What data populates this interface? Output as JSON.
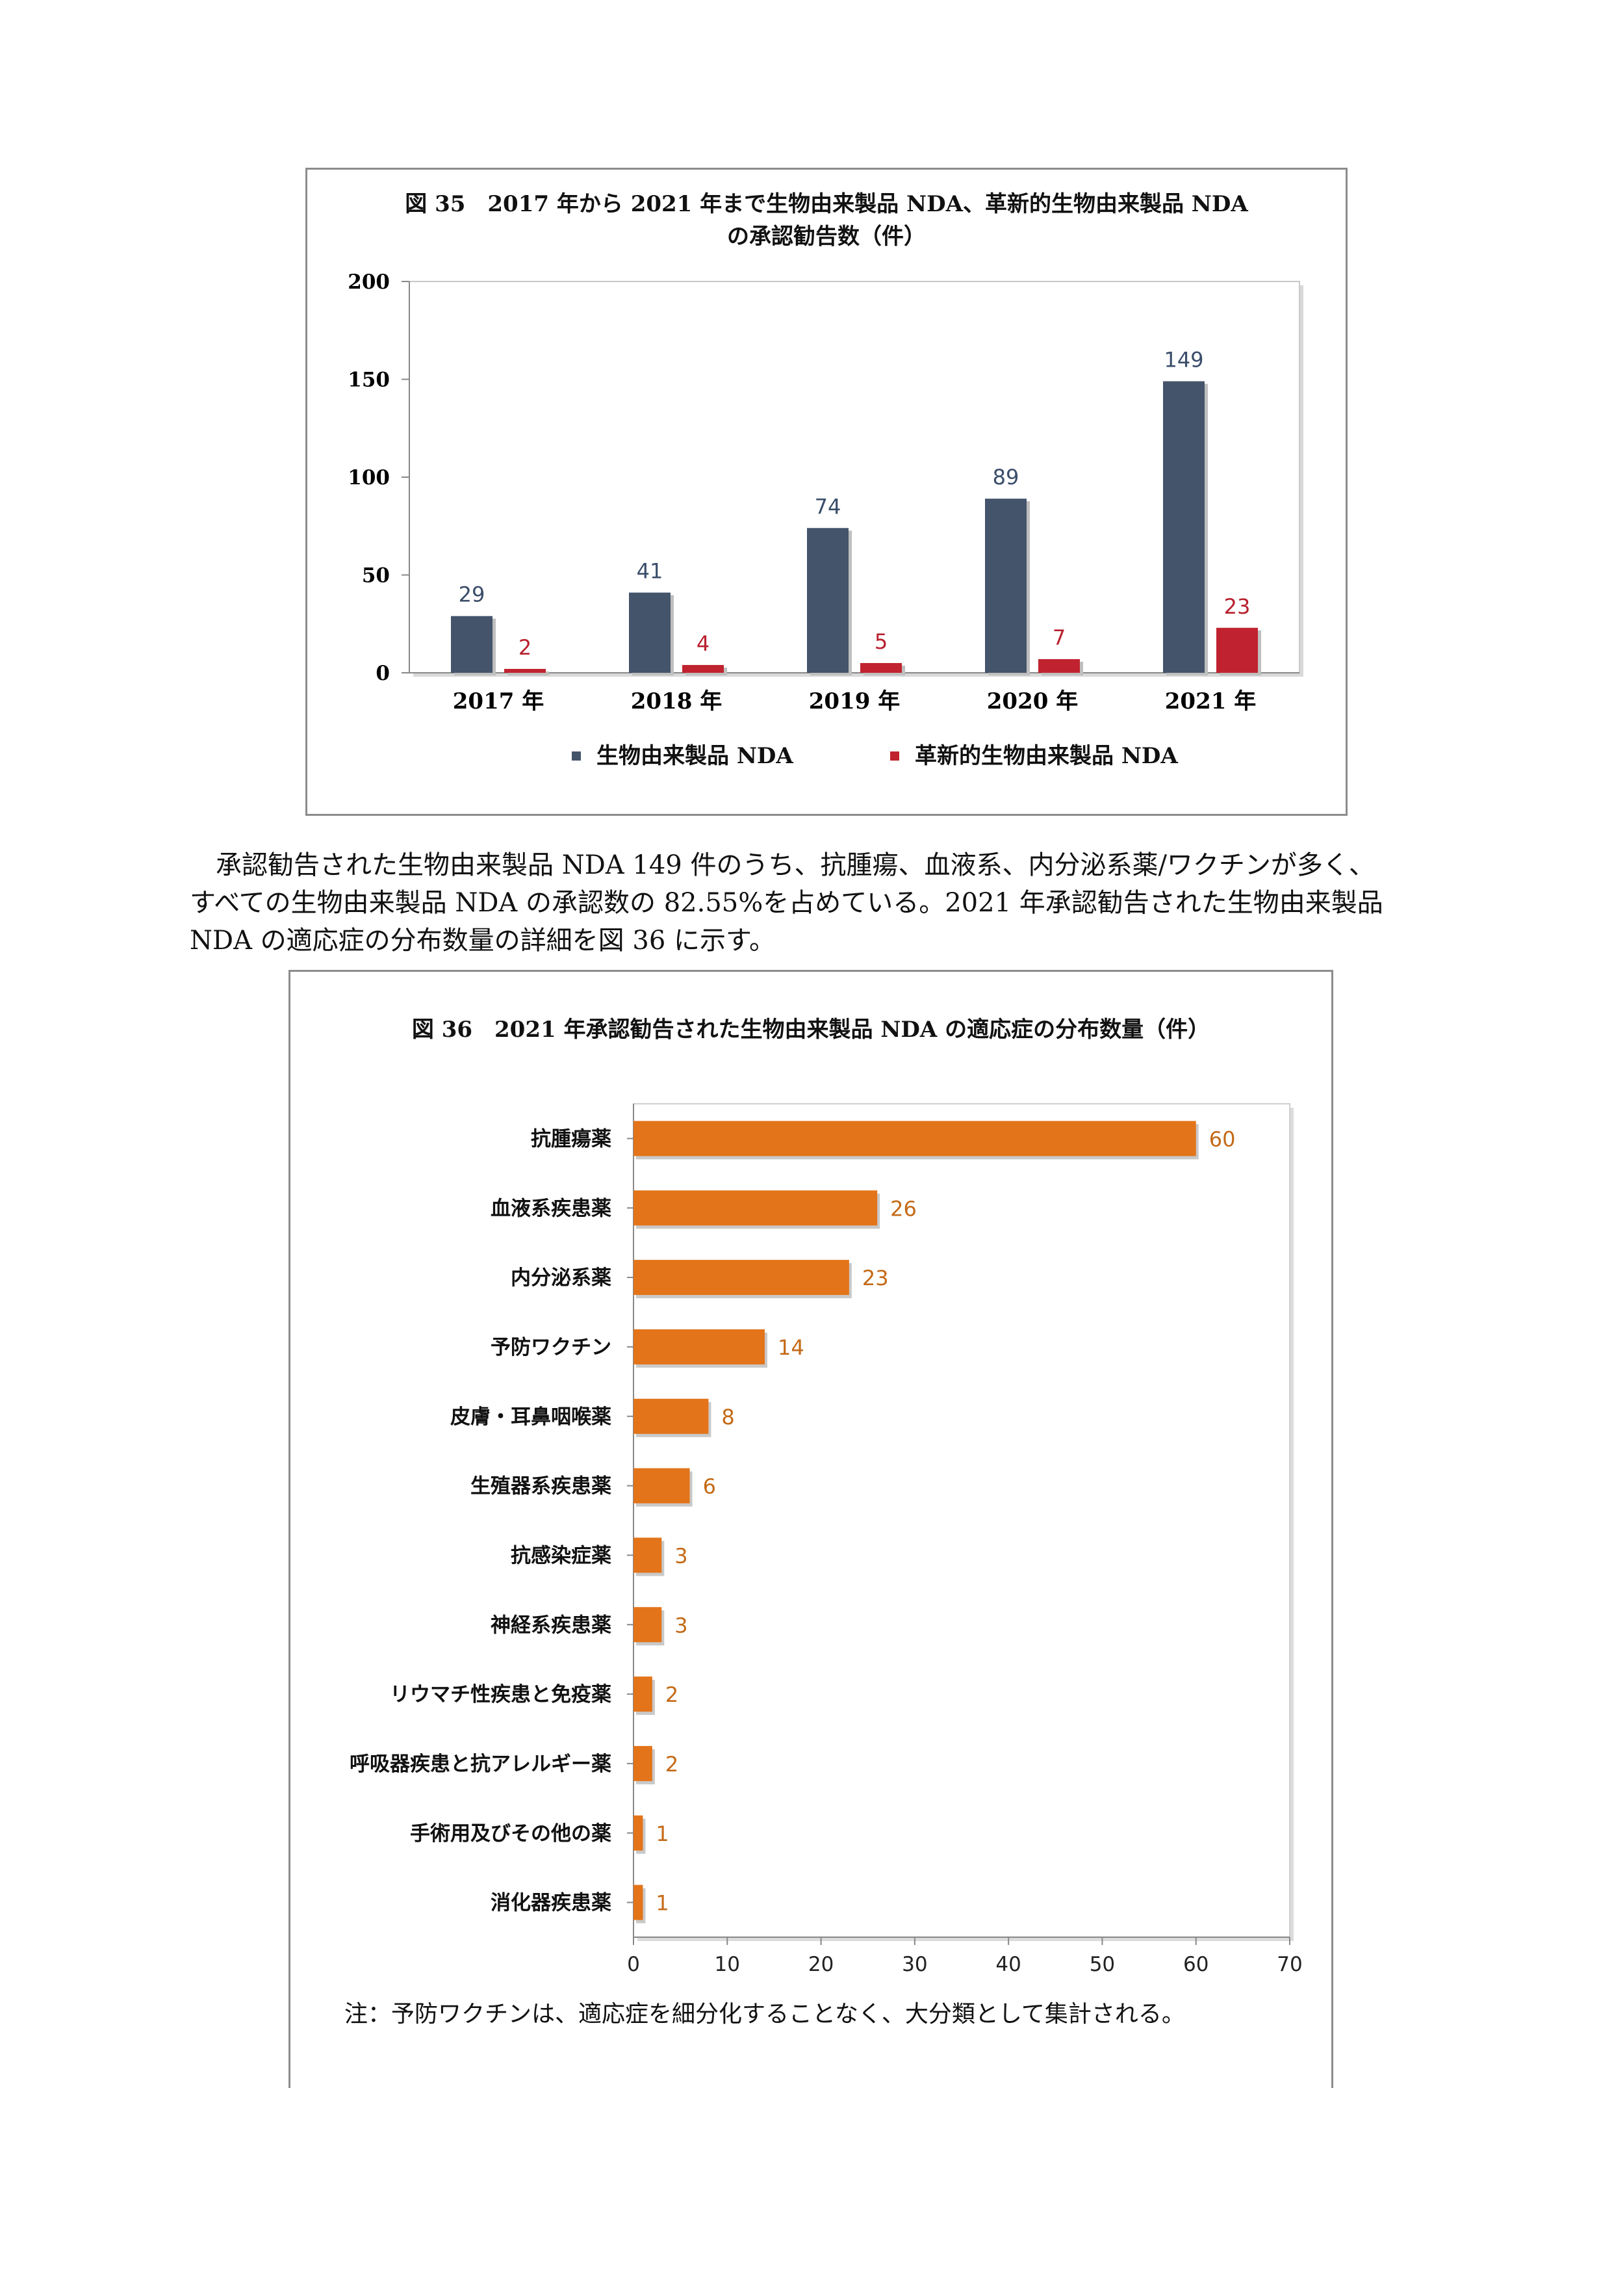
{
  "figure35": {
    "title_line1": "図 35　2017 年から 2021 年まで生物由来製品 NDA、革新的生物由来製品 NDA",
    "title_line2": "の承認勧告数（件）",
    "colors": {
      "series1": "#44546b",
      "series2": "#c0232f"
    },
    "chart_data": {
      "type": "bar",
      "categories": [
        "2017 年",
        "2018 年",
        "2019 年",
        "2020 年",
        "2021 年"
      ],
      "series": [
        {
          "name": "生物由来製品 NDA",
          "values": [
            29,
            41,
            74,
            89,
            149
          ]
        },
        {
          "name": "革新的生物由来製品 NDA",
          "values": [
            2,
            4,
            5,
            7,
            23
          ]
        }
      ],
      "yticks": [
        0,
        50,
        100,
        150,
        200
      ],
      "ylim": [
        0,
        200
      ],
      "legend": "bottom"
    }
  },
  "paragraph": {
    "line1": "承認勧告された生物由来製品 NDA 149 件のうち、抗腫瘍、血液系、内分泌系薬/ワクチンが多く、",
    "line2": "すべての生物由来製品 NDA の承認数の 82.55%を占めている。2021 年承認勧告された生物由来製品",
    "line3": "NDA の適応症の分布数量の詳細を図 36 に示す。"
  },
  "figure36": {
    "title": "図 36　2021 年承認勧告された生物由来製品 NDA の適応症の分布数量（件）",
    "colors": {
      "bar": "#e3741a",
      "label": "#c46a17"
    },
    "chart_data": {
      "type": "bar",
      "orientation": "horizontal",
      "categories": [
        "抗腫瘍薬",
        "血液系疾患薬",
        "内分泌系薬",
        "予防ワクチン",
        "皮膚・耳鼻咽喉薬",
        "生殖器系疾患薬",
        "抗感染症薬",
        "神経系疾患薬",
        "リウマチ性疾患と免疫薬",
        "呼吸器疾患と抗アレルギー薬",
        "手術用及びその他の薬",
        "消化器疾患薬"
      ],
      "values": [
        60,
        26,
        23,
        14,
        8,
        6,
        3,
        3,
        2,
        2,
        1,
        1
      ],
      "xticks": [
        0,
        10,
        20,
        30,
        40,
        50,
        60,
        70
      ],
      "xlim": [
        0,
        70
      ]
    },
    "note": "注：予防ワクチンは、適応症を細分化することなく、大分類として集計される。"
  }
}
